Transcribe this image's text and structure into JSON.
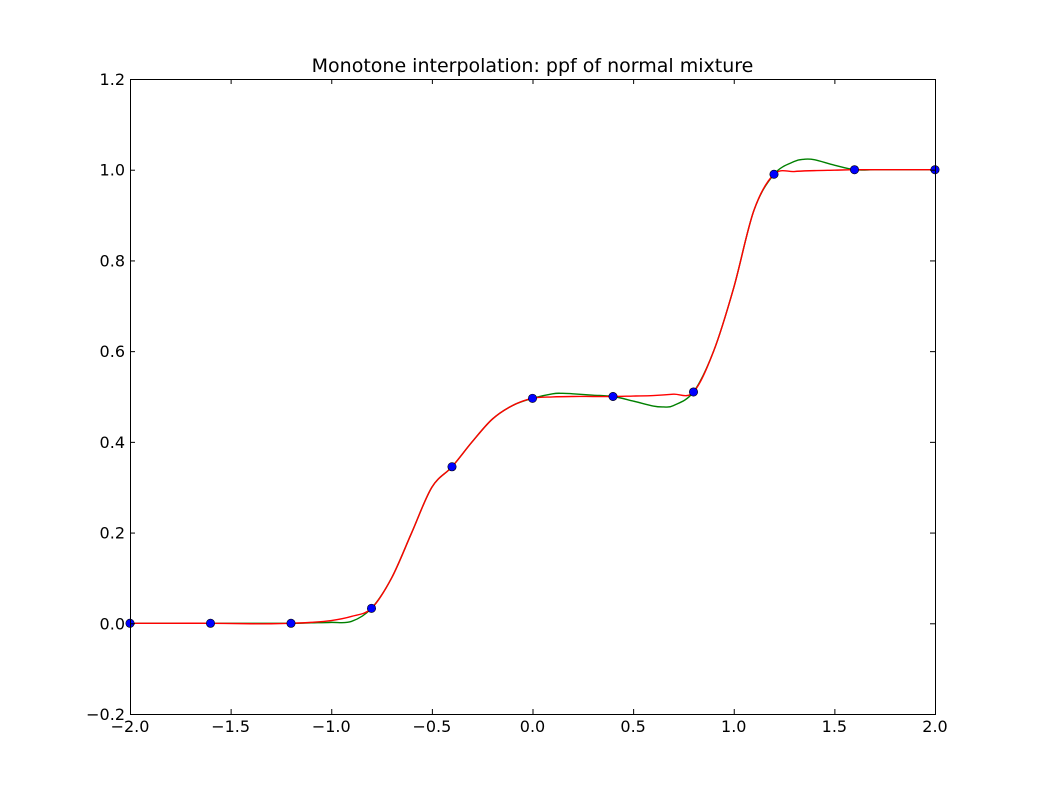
{
  "chart_data": {
    "type": "line",
    "title": "Monotone interpolation: ppf of normal mixture",
    "xlabel": "",
    "ylabel": "",
    "xlim": [
      -2.0,
      2.0
    ],
    "ylim": [
      -0.2,
      1.2
    ],
    "grid": false,
    "legend": "none",
    "xticks": [
      -2.0,
      -1.5,
      -1.0,
      -0.5,
      0.0,
      0.5,
      1.0,
      1.5,
      2.0
    ],
    "xtick_labels": [
      "−2.0",
      "−1.5",
      "−1.0",
      "−0.5",
      "0.0",
      "0.5",
      "1.0",
      "1.5",
      "2.0"
    ],
    "yticks": [
      -0.2,
      0.0,
      0.2,
      0.4,
      0.6,
      0.8,
      1.0,
      1.2
    ],
    "ytick_labels": [
      "−0.2",
      "0.0",
      "0.2",
      "0.4",
      "0.6",
      "0.8",
      "1.0",
      "1.2"
    ],
    "points": {
      "color": "#0000ff",
      "x": [
        -2.0,
        -1.6,
        -1.2,
        -0.8,
        -0.4,
        0.0,
        0.4,
        0.8,
        1.2,
        1.6,
        2.0
      ],
      "y": [
        0.0,
        0.0,
        0.0,
        0.033,
        0.345,
        0.496,
        0.5,
        0.51,
        0.99,
        1.0,
        1.0
      ]
    },
    "series": [
      {
        "color": "#008000",
        "x": [
          -2.0,
          -1.8,
          -1.6,
          -1.4,
          -1.2,
          -1.1,
          -1.0,
          -0.9,
          -0.8,
          -0.7,
          -0.6,
          -0.5,
          -0.4,
          -0.3,
          -0.2,
          -0.1,
          0.0,
          0.1,
          0.15,
          0.2,
          0.3,
          0.4,
          0.5,
          0.6,
          0.65,
          0.7,
          0.8,
          0.9,
          1.0,
          1.1,
          1.2,
          1.3,
          1.35,
          1.4,
          1.5,
          1.6,
          1.7,
          1.8,
          1.9,
          2.0
        ],
        "y": [
          0.0,
          0.0,
          0.0,
          0.0,
          0.0,
          0.001,
          0.002,
          0.004,
          0.033,
          0.1,
          0.2,
          0.3,
          0.345,
          0.4,
          0.45,
          0.48,
          0.496,
          0.506,
          0.507,
          0.506,
          0.503,
          0.5,
          0.49,
          0.479,
          0.477,
          0.48,
          0.51,
          0.6,
          0.74,
          0.91,
          0.99,
          1.018,
          1.023,
          1.022,
          1.01,
          1.0,
          1.0,
          1.0,
          1.0,
          1.0
        ]
      },
      {
        "color": "#ff0000",
        "x": [
          -2.0,
          -1.8,
          -1.6,
          -1.4,
          -1.3,
          -1.2,
          -1.1,
          -1.0,
          -0.9,
          -0.8,
          -0.7,
          -0.6,
          -0.5,
          -0.4,
          -0.3,
          -0.2,
          -0.1,
          0.0,
          0.1,
          0.2,
          0.3,
          0.4,
          0.5,
          0.6,
          0.7,
          0.8,
          0.9,
          1.0,
          1.1,
          1.2,
          1.3,
          1.4,
          1.5,
          1.6,
          1.7,
          1.8,
          1.9,
          2.0
        ],
        "y": [
          0.0,
          0.0,
          0.0,
          -0.001,
          -0.001,
          0.0,
          0.002,
          0.006,
          0.015,
          0.033,
          0.1,
          0.2,
          0.3,
          0.345,
          0.4,
          0.45,
          0.48,
          0.496,
          0.499,
          0.5,
          0.5,
          0.5,
          0.501,
          0.502,
          0.505,
          0.51,
          0.6,
          0.74,
          0.91,
          0.99,
          0.996,
          0.998,
          0.999,
          1.0,
          1.0,
          1.0,
          1.0,
          1.0
        ]
      }
    ]
  }
}
